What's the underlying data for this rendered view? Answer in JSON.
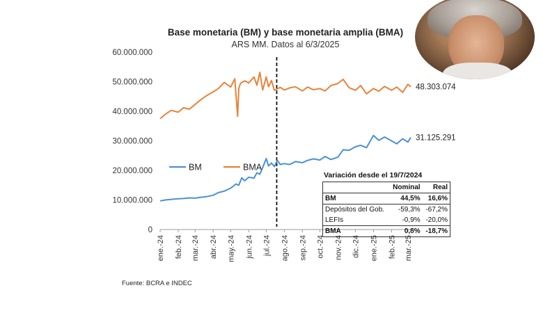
{
  "chart_data": {
    "type": "line",
    "title": "Base monetaria (BM) y base monetaria amplia (BMA)",
    "subtitle": "ARS MM. Datos al 6/3/2025",
    "xlabel": "",
    "ylabel": "",
    "ylim": [
      0,
      60000000
    ],
    "yticks": [
      0,
      10000000,
      20000000,
      30000000,
      40000000,
      50000000,
      60000000
    ],
    "ytick_labels": [
      "0",
      "10.000.000",
      "20.000.000",
      "30.000.000",
      "40.000.000",
      "50.000.000",
      "60.000.000"
    ],
    "xticks": [
      "ene.-24",
      "feb.-24",
      "mar.-24",
      "abr.-24",
      "may.-24",
      "jun.-24",
      "jul.-24",
      "ago.-24",
      "sep.-24",
      "oct.-24",
      "nov.-24",
      "dic.-24",
      "ene.-25",
      "feb.-25",
      "mar.-25"
    ],
    "vertical_line_at": "2024-07-19",
    "grid": false,
    "legend_position": "center-left",
    "series": [
      {
        "name": "BM",
        "color": "#4a90d6",
        "end_label": "31.125.291",
        "x": [
          "2024-01-01",
          "2024-01-10",
          "2024-01-20",
          "2024-02-01",
          "2024-02-10",
          "2024-02-20",
          "2024-03-01",
          "2024-03-10",
          "2024-03-20",
          "2024-04-01",
          "2024-04-10",
          "2024-04-20",
          "2024-05-01",
          "2024-05-10",
          "2024-05-15",
          "2024-05-20",
          "2024-05-25",
          "2024-06-01",
          "2024-06-10",
          "2024-06-15",
          "2024-06-20",
          "2024-06-25",
          "2024-07-01",
          "2024-07-05",
          "2024-07-10",
          "2024-07-15",
          "2024-07-20",
          "2024-07-25",
          "2024-08-01",
          "2024-08-10",
          "2024-08-20",
          "2024-09-01",
          "2024-09-10",
          "2024-09-20",
          "2024-10-01",
          "2024-10-10",
          "2024-10-20",
          "2024-11-01",
          "2024-11-10",
          "2024-11-20",
          "2024-12-01",
          "2024-12-10",
          "2024-12-20",
          "2025-01-01",
          "2025-01-10",
          "2025-01-20",
          "2025-02-01",
          "2025-02-10",
          "2025-02-20",
          "2025-03-01",
          "2025-03-06"
        ],
        "values": [
          9700000,
          10000000,
          10200000,
          10400000,
          10500000,
          10700000,
          10600000,
          10900000,
          11100000,
          11600000,
          12500000,
          13000000,
          14000000,
          15400000,
          15000000,
          17500000,
          16500000,
          17700000,
          17400000,
          19200000,
          18700000,
          21000000,
          24000000,
          21500000,
          22500000,
          21300000,
          23400000,
          22000000,
          22300000,
          22000000,
          23000000,
          22600000,
          23400000,
          23900000,
          23500000,
          24700000,
          23700000,
          24500000,
          27000000,
          26800000,
          28000000,
          28500000,
          27700000,
          31800000,
          30200000,
          31300000,
          30000000,
          29000000,
          30700000,
          29600000,
          31125291
        ]
      },
      {
        "name": "BMA",
        "color": "#e8823a",
        "end_label": "48.303.074",
        "x": [
          "2024-01-01",
          "2024-01-10",
          "2024-01-20",
          "2024-02-01",
          "2024-02-10",
          "2024-02-20",
          "2024-03-01",
          "2024-03-10",
          "2024-03-20",
          "2024-04-01",
          "2024-04-10",
          "2024-04-20",
          "2024-05-01",
          "2024-05-08",
          "2024-05-13",
          "2024-05-15",
          "2024-05-18",
          "2024-05-25",
          "2024-06-01",
          "2024-06-10",
          "2024-06-15",
          "2024-06-20",
          "2024-06-25",
          "2024-07-01",
          "2024-07-05",
          "2024-07-10",
          "2024-07-15",
          "2024-07-20",
          "2024-07-25",
          "2024-08-01",
          "2024-08-10",
          "2024-08-20",
          "2024-09-01",
          "2024-09-10",
          "2024-09-20",
          "2024-10-01",
          "2024-10-10",
          "2024-10-20",
          "2024-11-01",
          "2024-11-10",
          "2024-11-20",
          "2024-12-01",
          "2024-12-10",
          "2024-12-20",
          "2025-01-01",
          "2025-01-10",
          "2025-01-20",
          "2025-02-01",
          "2025-02-10",
          "2025-02-20",
          "2025-03-01",
          "2025-03-06"
        ],
        "values": [
          37500000,
          39000000,
          40300000,
          39700000,
          41200000,
          40700000,
          42300000,
          43800000,
          45200000,
          46600000,
          47700000,
          49800000,
          48200000,
          51000000,
          38300000,
          47800000,
          49500000,
          50300000,
          49600000,
          51600000,
          48800000,
          53200000,
          47200000,
          51600000,
          48300000,
          50400000,
          47100000,
          47600000,
          48100000,
          47200000,
          47900000,
          48300000,
          46900000,
          48200000,
          47300000,
          47700000,
          46900000,
          48700000,
          49400000,
          50800000,
          48000000,
          47100000,
          48700000,
          45900000,
          47700000,
          46800000,
          48400000,
          47100000,
          48200000,
          46400000,
          49100000,
          48303074
        ]
      }
    ]
  },
  "table": {
    "title": "Variación desde el 19/7/2024",
    "headers": [
      "",
      "Nominal",
      "Real"
    ],
    "rows": [
      [
        "BM",
        "44,5%",
        "16,6%"
      ],
      [
        "Depósitos del Gob.",
        "-59,3%",
        "-67,2%"
      ],
      [
        "LEFIs",
        "-0,9%",
        "-20,0%"
      ],
      [
        "BMA",
        "0,8%",
        "-18,7%"
      ]
    ]
  },
  "source": "Fuente: BCRA e INDEC"
}
